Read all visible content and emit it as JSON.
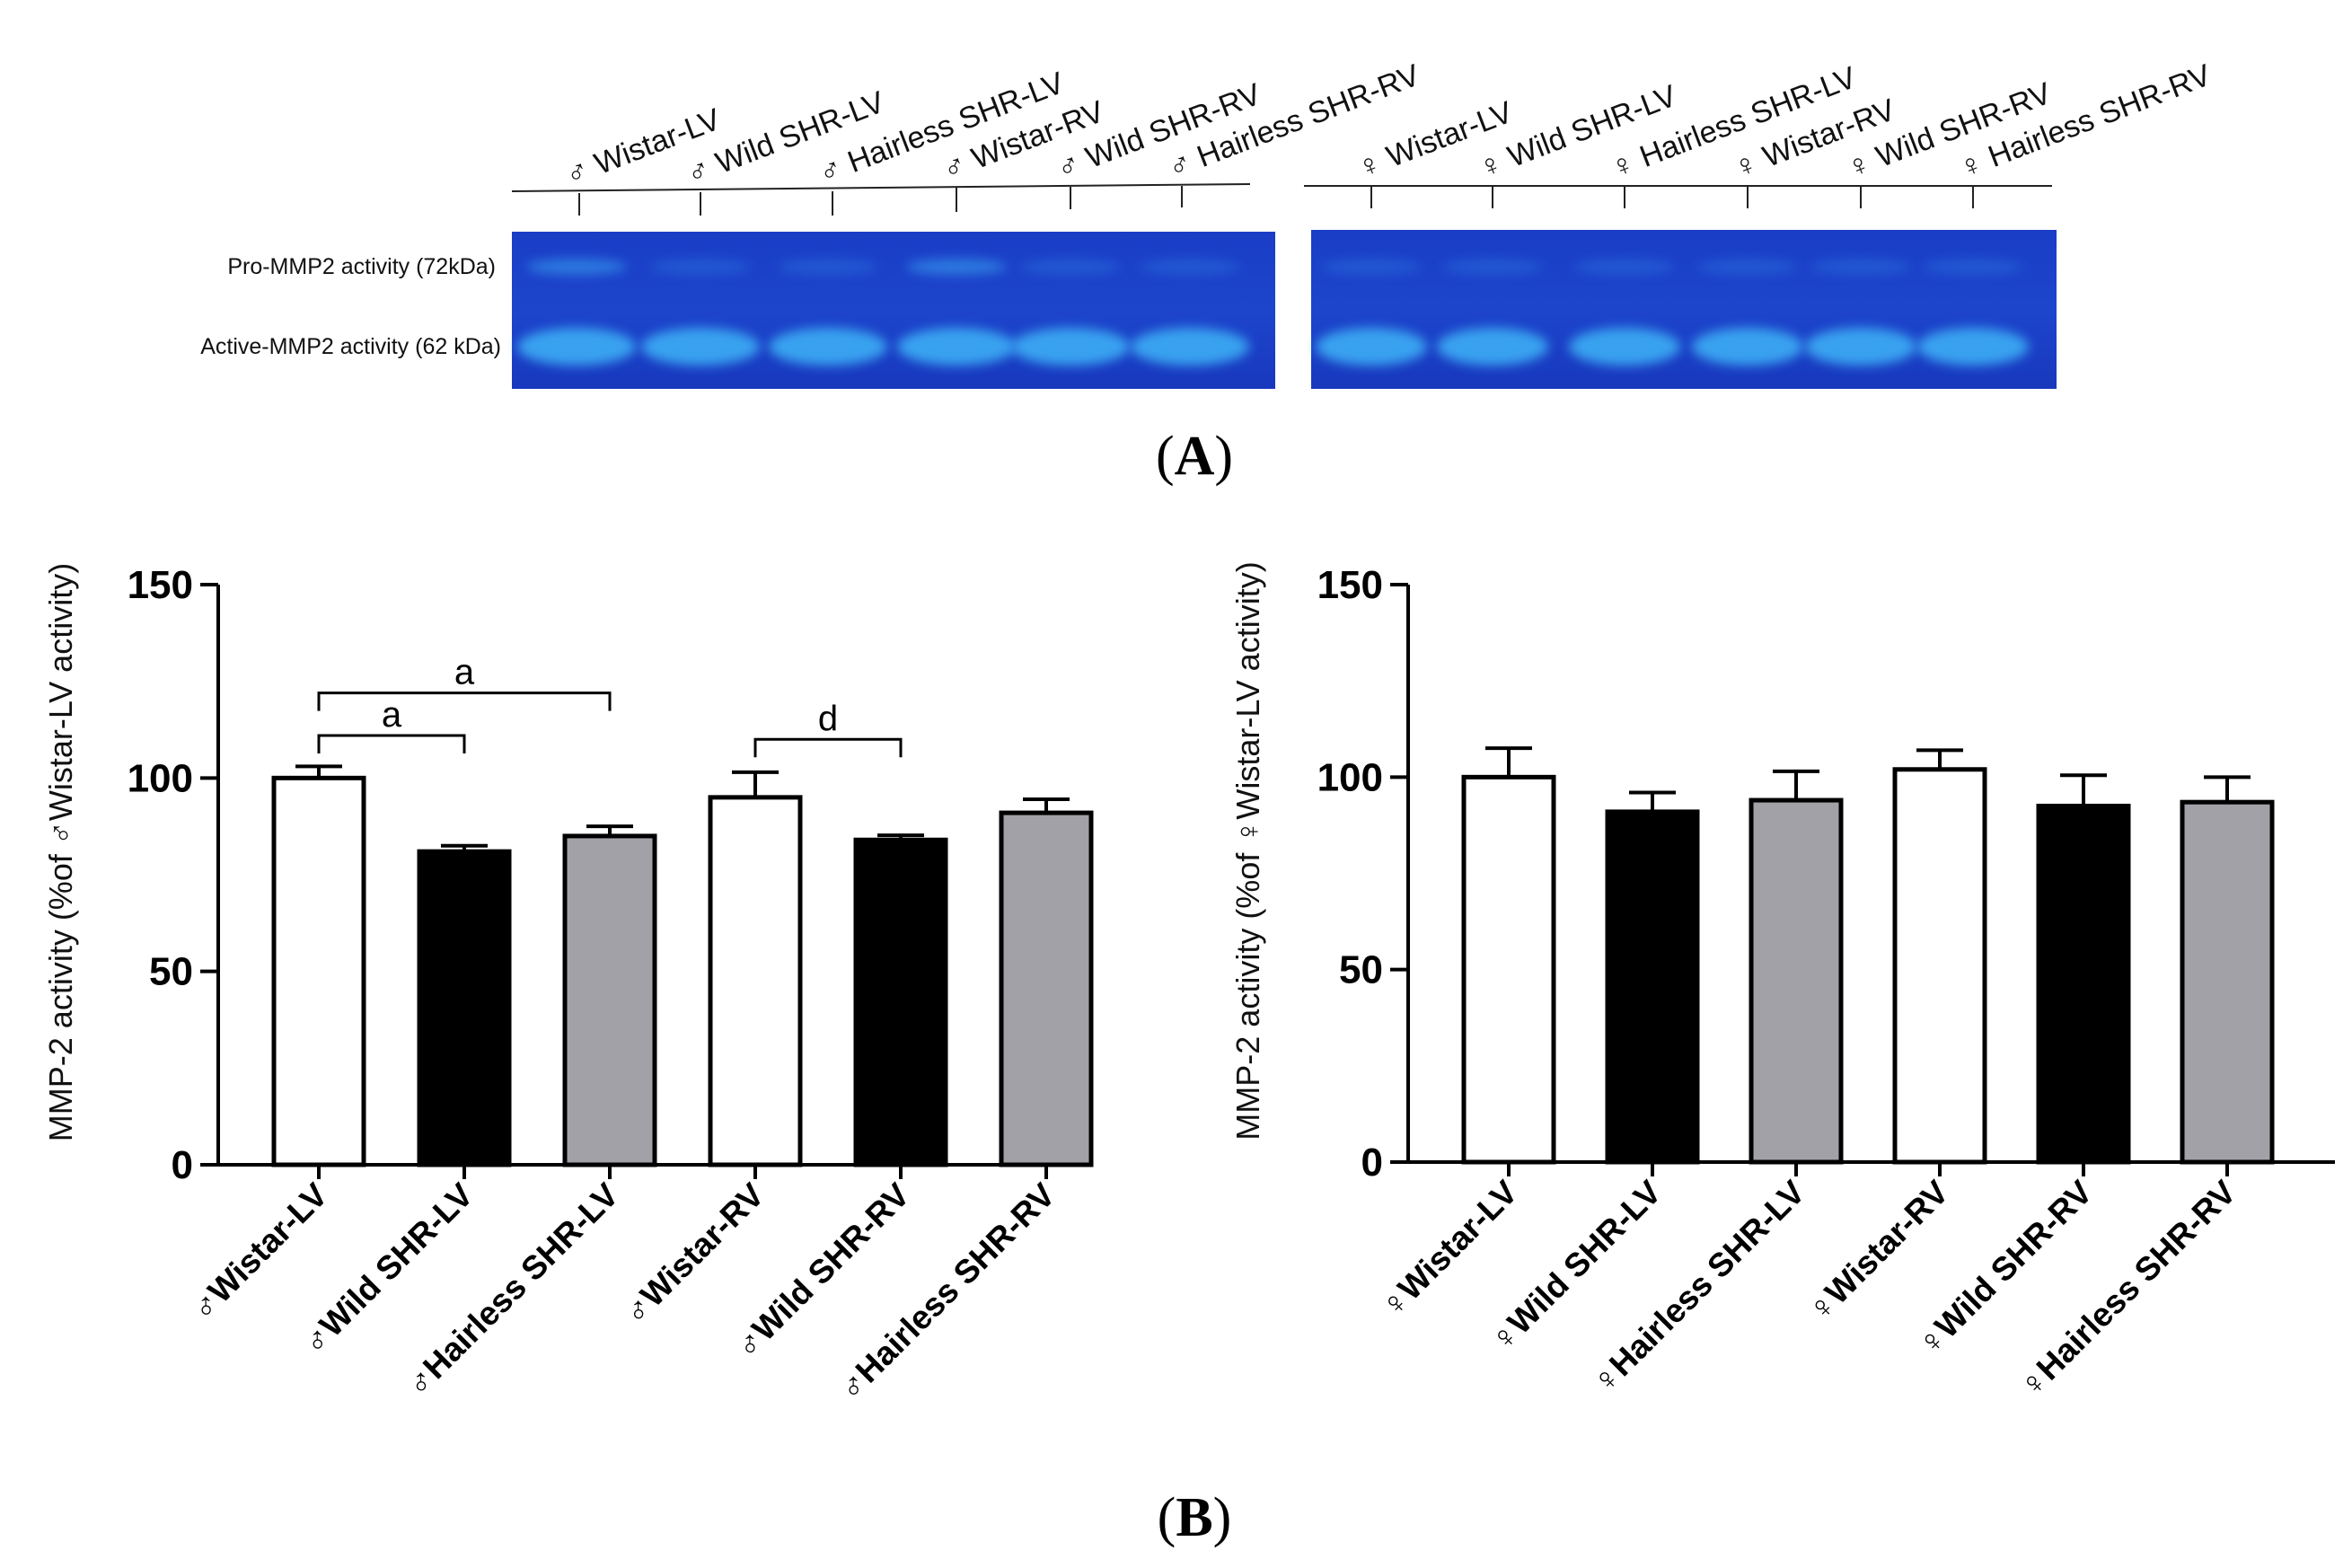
{
  "panel_a": {
    "label": "A",
    "male_lanes": [
      "♂ Wistar-LV",
      "♂ Wild SHR-LV",
      "♂ Hairless SHR-LV",
      "♂ Wistar-RV",
      "♂ Wild SHR-RV",
      "♂ Hairless SHR-RV"
    ],
    "female_lanes": [
      "♀ Wistar-LV",
      "♀ Wild SHR-LV",
      "♀ Hairless SHR-LV",
      "♀ Wistar-RV",
      "♀ Wild SHR-RV",
      "♀ Hairless SHR-RV"
    ],
    "row_labels": {
      "pro": "Pro-MMP2 activity (72kDa)",
      "active": "Active-MMP2 activity (62 kDa)"
    },
    "gel_color": "#1a3dc6",
    "band_color": "#3aa7f2"
  },
  "panel_b": {
    "label": "B"
  },
  "colors": {
    "white_bar": "#ffffff",
    "black_bar": "#000000",
    "gray_bar": "#a3a1a8"
  },
  "chart_data": [
    {
      "type": "bar",
      "id": "male",
      "ylabel": "MMP-2 activity (%of ♂Wistar-LV activity)",
      "ylim": [
        0,
        150
      ],
      "yticks": [
        0,
        50,
        100,
        150
      ],
      "categories": [
        "♂Wistar-LV",
        "♂Wild SHR-LV",
        "♂Hairless SHR-LV",
        "♂Wistar-RV",
        "♂Wild SHR-RV",
        "♂Hairless SHR-RV"
      ],
      "values": [
        100,
        81,
        85,
        95,
        84,
        91
      ],
      "errors": [
        3,
        1.5,
        2.5,
        6.5,
        1.2,
        3.5
      ],
      "fills": [
        "white",
        "black",
        "gray",
        "white",
        "black",
        "gray"
      ],
      "significance": [
        {
          "from": 0,
          "to": 2,
          "y": 122,
          "label": "a"
        },
        {
          "from": 0,
          "to": 1,
          "y": 111,
          "label": "a"
        },
        {
          "from": 3,
          "to": 4,
          "y": 110,
          "label": "d"
        }
      ]
    },
    {
      "type": "bar",
      "id": "female",
      "ylabel": "MMP-2 activity (%of ♀Wistar-LV activity)",
      "ylim": [
        0,
        150
      ],
      "yticks": [
        0,
        50,
        100,
        150
      ],
      "categories": [
        "♀Wistar-LV",
        "♀Wild SHR-LV",
        "♀Hairless SHR-LV",
        "♀Wistar-RV",
        "♀Wild SHR-RV",
        "♀Hairless SHR-RV"
      ],
      "values": [
        100,
        91,
        94,
        102,
        92.5,
        93.5
      ],
      "errors": [
        7.5,
        5,
        7.5,
        5,
        8,
        6.5
      ],
      "fills": [
        "white",
        "black",
        "gray",
        "white",
        "black",
        "gray"
      ],
      "significance": []
    }
  ]
}
